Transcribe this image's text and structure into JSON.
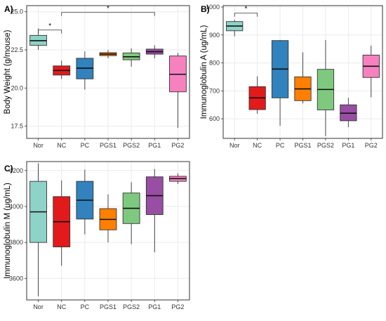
{
  "chart_data": [
    {
      "type": "box",
      "panel_label": "A)",
      "ylabel": "Body Weight (g/mouse)",
      "categories": [
        "Nor",
        "NC",
        "PC",
        "PGS1",
        "PGS2",
        "PG1",
        "PG2"
      ],
      "yticks": [
        "17.5",
        "20.0",
        "22.5",
        "25.0"
      ],
      "ylim": [
        16.7,
        25.4
      ],
      "boxes": [
        {
          "min": 22.5,
          "q1": 22.8,
          "median": 23.1,
          "q3": 23.45,
          "max": 23.9,
          "color": "#8dd3c7"
        },
        {
          "min": 20.6,
          "q1": 20.85,
          "median": 21.15,
          "q3": 21.45,
          "max": 21.8,
          "color": "#e31a1c"
        },
        {
          "min": 19.9,
          "q1": 20.6,
          "median": 21.3,
          "q3": 21.95,
          "max": 22.4,
          "color": "#3182bd"
        },
        {
          "min": 21.95,
          "q1": 22.12,
          "median": 22.22,
          "q3": 22.32,
          "max": 22.48,
          "color": "#ff7f00"
        },
        {
          "min": 21.4,
          "q1": 21.85,
          "median": 22.05,
          "q3": 22.3,
          "max": 22.6,
          "color": "#7fc97f"
        },
        {
          "min": 21.95,
          "q1": 22.22,
          "median": 22.38,
          "q3": 22.55,
          "max": 22.8,
          "color": "#984ea3"
        },
        {
          "min": 17.4,
          "q1": 19.75,
          "median": 20.9,
          "q3": 22.1,
          "max": 22.3,
          "color": "#f781bf"
        }
      ],
      "significance": [
        {
          "from": 0,
          "to": 1,
          "y": 23.8,
          "label": "*"
        },
        {
          "from": 1,
          "to": 5,
          "y": 24.95,
          "label": "*"
        }
      ]
    },
    {
      "type": "box",
      "panel_label": "B)",
      "ylabel": "Immunoglobulin A (ug/mL)",
      "categories": [
        "Nor",
        "NC",
        "PC",
        "PGS1",
        "PGS2",
        "PG1",
        "PG2"
      ],
      "yticks": [
        "600",
        "700",
        "800",
        "900",
        "1000"
      ],
      "ylim": [
        530,
        1005
      ],
      "boxes": [
        {
          "min": 895,
          "q1": 915,
          "median": 932,
          "q3": 948,
          "max": 955,
          "color": "#8dd3c7"
        },
        {
          "min": 618,
          "q1": 633,
          "median": 675,
          "q3": 715,
          "max": 752,
          "color": "#e31a1c"
        },
        {
          "min": 575,
          "q1": 675,
          "median": 778,
          "q3": 880,
          "max": 882,
          "color": "#3182bd"
        },
        {
          "min": 655,
          "q1": 665,
          "median": 707,
          "q3": 750,
          "max": 838,
          "color": "#ff7f00"
        },
        {
          "min": 538,
          "q1": 632,
          "median": 705,
          "q3": 777,
          "max": 882,
          "color": "#7fc97f"
        },
        {
          "min": 570,
          "q1": 593,
          "median": 620,
          "q3": 650,
          "max": 675,
          "color": "#984ea3"
        },
        {
          "min": 677,
          "q1": 748,
          "median": 788,
          "q3": 828,
          "max": 862,
          "color": "#f781bf"
        }
      ],
      "significance": [
        {
          "from": 0,
          "to": 1,
          "y": 978,
          "label": "*"
        }
      ]
    },
    {
      "type": "box",
      "panel_label": "C)",
      "ylabel": "Immunoglobulin M (ug/mL)",
      "categories": [
        "Nor",
        "NC",
        "PC",
        "PGS1",
        "PGS2",
        "PG1",
        "PG2"
      ],
      "yticks": [
        "3600",
        "3800",
        "4000",
        "4200"
      ],
      "ylim": [
        3480,
        4250
      ],
      "boxes": [
        {
          "min": 3500,
          "q1": 3800,
          "median": 3970,
          "q3": 4140,
          "max": 4240,
          "color": "#8dd3c7"
        },
        {
          "min": 3670,
          "q1": 3775,
          "median": 3915,
          "q3": 4055,
          "max": 4145,
          "color": "#e31a1c"
        },
        {
          "min": 3845,
          "q1": 3930,
          "median": 4035,
          "q3": 4140,
          "max": 4205,
          "color": "#3182bd"
        },
        {
          "min": 3800,
          "q1": 3870,
          "median": 3928,
          "q3": 3988,
          "max": 4068,
          "color": "#ff7f00"
        },
        {
          "min": 3790,
          "q1": 3905,
          "median": 3990,
          "q3": 4075,
          "max": 4135,
          "color": "#7fc97f"
        },
        {
          "min": 3745,
          "q1": 3955,
          "median": 4060,
          "q3": 4165,
          "max": 4208,
          "color": "#984ea3"
        },
        {
          "min": 4125,
          "q1": 4140,
          "median": 4155,
          "q3": 4168,
          "max": 4185,
          "color": "#f781bf"
        }
      ],
      "significance": []
    }
  ]
}
